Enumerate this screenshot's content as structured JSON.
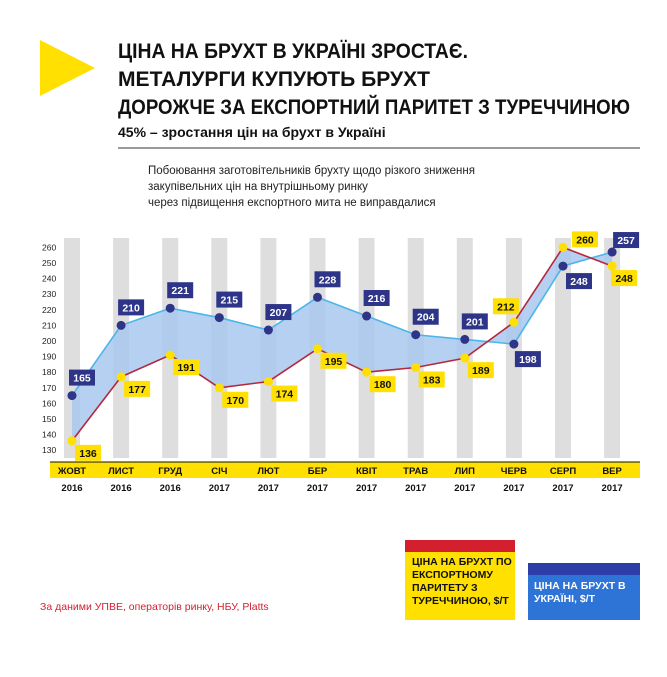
{
  "chart_data": {
    "type": "line",
    "title": [
      "ЦІНА НА БРУХТ В УКРАЇНІ ЗРОСТАЄ.",
      "МЕТАЛУРГИ КУПУЮТЬ БРУХТ",
      "ДОРОЖЧЕ ЗА ЕКСПОРТНИЙ ПАРИТЕТ З ТУРЕЧЧИНОЮ"
    ],
    "subtitle": "45% – зростання цін на брухт в Україні",
    "description": [
      "Побоювання заготовітельників брухту щодо різкого зниження",
      "закупівельних цін на внутрішньому ринку",
      "через підвищення експортного мита не виправдалися"
    ],
    "categories": [
      "ЖОВТ",
      "ЛИСТ",
      "ГРУД",
      "СІЧ",
      "ЛЮТ",
      "БЕР",
      "КВІТ",
      "ТРАВ",
      "ЛИП",
      "ЧЕРВ",
      "СЕРП",
      "ВЕР"
    ],
    "category_years": [
      "2016",
      "2016",
      "2016",
      "2017",
      "2017",
      "2017",
      "2017",
      "2017",
      "2017",
      "2017",
      "2017",
      "2017"
    ],
    "series": [
      {
        "name": "ЦІНА НА БРУХТ В УКРАЇНІ, $/Т",
        "color": "#4bb6e8",
        "marker_color": "#2e3488",
        "values": [
          165,
          210,
          221,
          215,
          207,
          228,
          216,
          204,
          201,
          198,
          248,
          257
        ]
      },
      {
        "name": "ЦІНА НА БРУХТ ПО ЕКСПОРТНОМУ ПАРИТЕТУ З ТУРЕЧЧИНОЮ, $/Т",
        "color": "#b3283c",
        "marker_color": "#ffe000",
        "values": [
          136,
          177,
          191,
          170,
          174,
          195,
          180,
          183,
          189,
          212,
          260,
          248
        ]
      }
    ],
    "ylim": [
      125,
      266
    ],
    "yticks": [
      130,
      140,
      150,
      160,
      170,
      180,
      190,
      200,
      210,
      220,
      230,
      240,
      250,
      260
    ],
    "grid": false,
    "source": "За даними УПВЕ, операторів ринку, НБУ, Platts"
  }
}
